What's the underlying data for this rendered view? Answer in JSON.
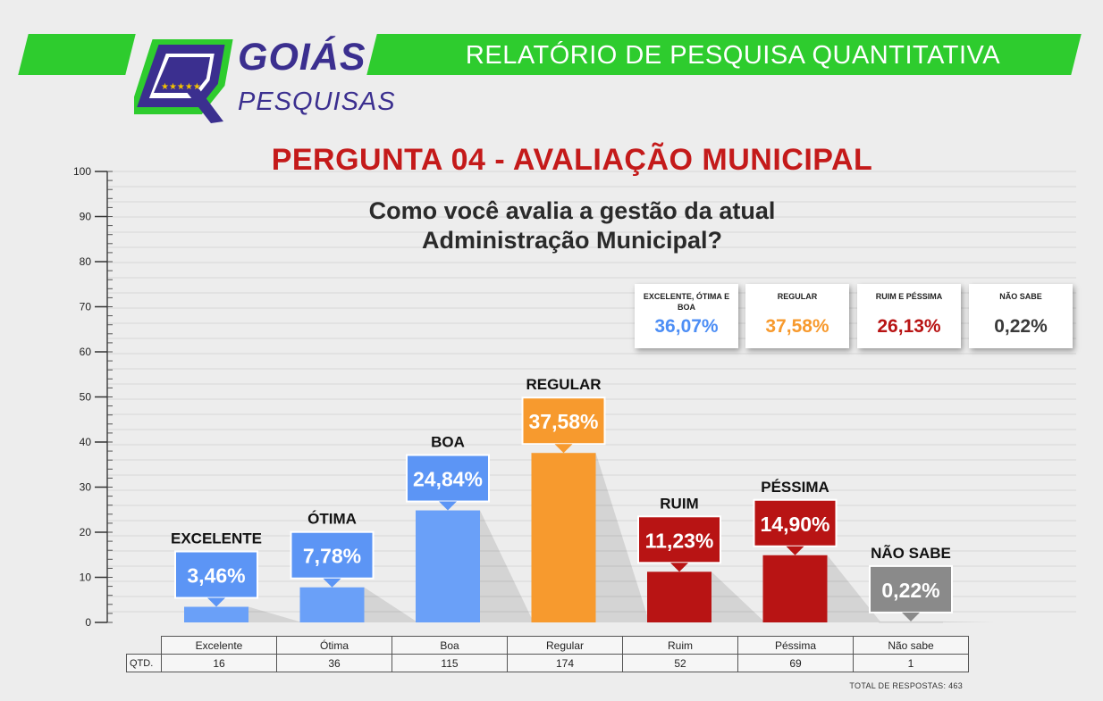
{
  "header": {
    "report_title": "RELATÓRIO DE PESQUISA QUANTITATIVA",
    "logo_brand": "GOIÁS",
    "logo_sub": "PESQUISAS"
  },
  "question": {
    "title": "PERGUNTA 04 - AVALIAÇÃO MUNICIPAL",
    "line1": "Como você avalia a gestão da atual",
    "line2": "Administração Municipal?"
  },
  "summary": [
    {
      "label": "EXCELENTE, ÓTIMA E BOA",
      "value": "36,07%",
      "color": "#4d8ef5"
    },
    {
      "label": "REGULAR",
      "value": "37,58%",
      "color": "#f79a2e"
    },
    {
      "label": "RUIM E PÉSSIMA",
      "value": "26,13%",
      "color": "#b81414"
    },
    {
      "label": "NÃO SABE",
      "value": "0,22%",
      "color": "#3a3a3a"
    }
  ],
  "chart_data": {
    "type": "bar",
    "categories": [
      "Excelente",
      "Ótima",
      "Boa",
      "Regular",
      "Ruim",
      "Péssima",
      "Não sabe"
    ],
    "labels": [
      "EXCELENTE",
      "ÓTIMA",
      "BOA",
      "REGULAR",
      "RUIM",
      "PÉSSIMA",
      "NÃO SABE"
    ],
    "values": [
      3.46,
      7.78,
      24.84,
      37.58,
      11.23,
      14.9,
      0.22
    ],
    "value_labels": [
      "3,46%",
      "7,78%",
      "24,84%",
      "37,58%",
      "11,23%",
      "14,90%",
      "0,22%"
    ],
    "colors": [
      "#6aa0f8",
      "#6aa0f8",
      "#6aa0f8",
      "#f79a2e",
      "#b81414",
      "#b81414",
      "#cccccc"
    ],
    "bubble_colors": [
      "#5c95f5",
      "#5c95f5",
      "#5c95f5",
      "#f79a2e",
      "#b81414",
      "#b81414",
      "#8a8a8a"
    ],
    "ylim": [
      0,
      100
    ],
    "yticks": [
      0,
      10,
      20,
      30,
      40,
      50,
      60,
      70,
      80,
      90,
      100
    ],
    "grid": true
  },
  "table": {
    "row_label": "QTD.",
    "quantities": [
      "16",
      "36",
      "115",
      "174",
      "52",
      "69",
      "1"
    ],
    "total": "TOTAL DE RESPOSTAS: 463"
  }
}
